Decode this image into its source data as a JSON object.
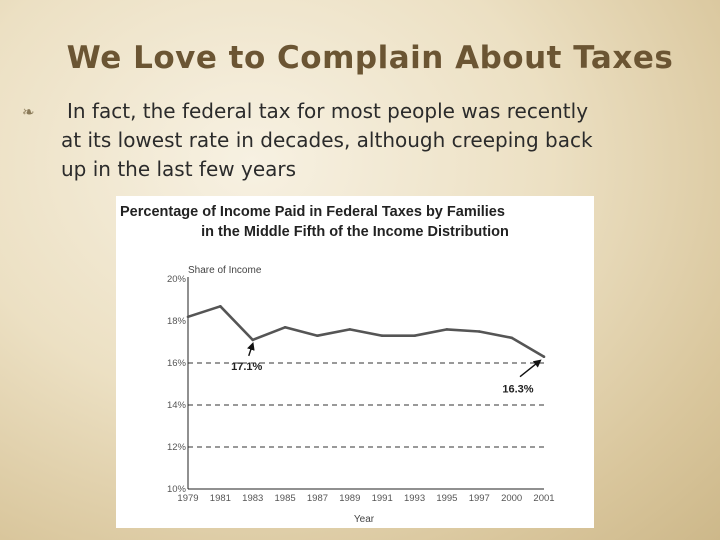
{
  "slide": {
    "title": "We Love to Complain About Taxes",
    "bullet_lines": [
      "In fact, the federal tax for most people was recently",
      "at its lowest rate in decades, although creeping back",
      "up in the last few years"
    ],
    "bullet_icon": "fancy-bullet-icon"
  },
  "chart_data": {
    "type": "line",
    "title": "Percentage of Income Paid in Federal Taxes by Families",
    "subtitle": "in the Middle Fifth of the Income Distribution",
    "ylabel": "Share of Income",
    "xlabel": "Year",
    "ylim": [
      10,
      20
    ],
    "yticks": [
      "20%",
      "18%",
      "16%",
      "14%",
      "12%",
      "10%"
    ],
    "xticks": [
      "1979",
      "1981",
      "1983",
      "1985",
      "1987",
      "1989",
      "1991",
      "1993",
      "1995",
      "1997",
      "2000",
      "2001"
    ],
    "grid": "dashed horizontal",
    "series": [
      {
        "values": [
          18.2,
          18.7,
          17.1,
          17.7,
          17.3,
          17.6,
          17.3,
          17.3,
          17.6,
          17.5,
          17.2,
          16.3
        ]
      }
    ],
    "annotations": [
      {
        "text": "17.1%",
        "x": "1983",
        "y": 17.1
      },
      {
        "text": "16.3%",
        "x": "2001",
        "y": 16.3
      }
    ],
    "colors": {
      "line": "#555555",
      "grid": "#333333"
    }
  }
}
